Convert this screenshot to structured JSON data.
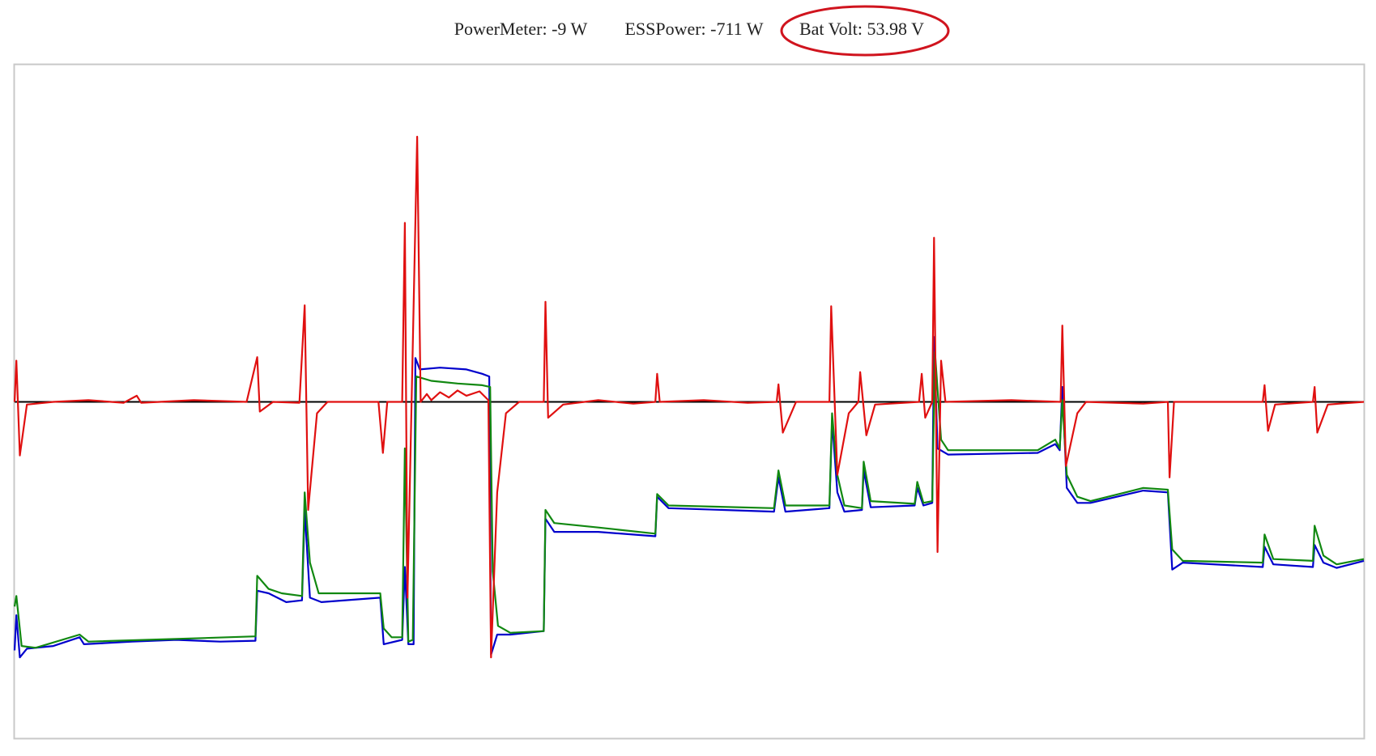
{
  "header": {
    "power_meter": "PowerMeter: -9 W",
    "ess_power": "ESSPower: -711 W",
    "bat_volt": "Bat Volt: 53.98 V"
  },
  "chart_data": {
    "type": "line",
    "xlim": [
      0,
      1535
    ],
    "ylim": [
      -383,
      384
    ],
    "series": [
      {
        "color": "#0000cc",
        "x": [
          0,
          2,
          6,
          14,
          44,
          74,
          79,
          134,
          184,
          234,
          274,
          276,
          289,
          309,
          327,
          330,
          336,
          349,
          416,
          420,
          441,
          444,
          448,
          454,
          456,
          461,
          484,
          514,
          532,
          540,
          542,
          549,
          564,
          602,
          604,
          614,
          664,
          729,
          731,
          744,
          864,
          869,
          877,
          927,
          930,
          936,
          944,
          964,
          966,
          974,
          1024,
          1027,
          1034,
          1044,
          1046,
          1050,
          1062,
          1164,
          1184,
          1189,
          1192,
          1197,
          1209,
          1224,
          1284,
          1312,
          1317,
          1329,
          1420,
          1422,
          1432,
          1477,
          1479,
          1489,
          1504,
          1535
        ],
        "values": [
          -283,
          -243,
          -291,
          -281,
          -278,
          -268,
          -276,
          -273,
          -271,
          -273,
          -272,
          -215,
          -218,
          -228,
          -226,
          -123,
          -223,
          -228,
          -223,
          -276,
          -271,
          -188,
          -276,
          -276,
          50,
          37,
          39,
          37,
          32,
          29,
          -288,
          -265,
          -265,
          -261,
          -133,
          -148,
          -148,
          -153,
          -108,
          -121,
          -125,
          -86,
          -125,
          -121,
          -21,
          -103,
          -125,
          -123,
          -78,
          -120,
          -118,
          -98,
          -118,
          -115,
          74,
          -53,
          -60,
          -58,
          -48,
          -55,
          17,
          -98,
          -115,
          -115,
          -101,
          -103,
          -191,
          -183,
          -188,
          -165,
          -185,
          -188,
          -163,
          -183,
          -189,
          -181
        ]
      },
      {
        "color": "#118811",
        "x": [
          0,
          2,
          8,
          24,
          74,
          84,
          184,
          274,
          276,
          289,
          304,
          327,
          330,
          336,
          346,
          416,
          420,
          429,
          441,
          444,
          448,
          453,
          457,
          474,
          504,
          532,
          541,
          544,
          550,
          564,
          602,
          604,
          614,
          664,
          729,
          731,
          744,
          864,
          869,
          877,
          927,
          930,
          936,
          944,
          964,
          966,
          974,
          1024,
          1027,
          1034,
          1044,
          1047,
          1054,
          1062,
          1164,
          1184,
          1189,
          1192,
          1197,
          1209,
          1224,
          1284,
          1312,
          1317,
          1329,
          1420,
          1422,
          1432,
          1477,
          1479,
          1489,
          1504,
          1535
        ],
        "values": [
          -233,
          -221,
          -278,
          -280,
          -265,
          -273,
          -270,
          -267,
          -198,
          -213,
          -218,
          -221,
          -103,
          -183,
          -218,
          -218,
          -258,
          -268,
          -268,
          -53,
          -273,
          -271,
          29,
          24,
          21,
          19,
          17,
          -193,
          -255,
          -263,
          -261,
          -123,
          -138,
          -143,
          -150,
          -105,
          -118,
          -121,
          -78,
          -118,
          -118,
          -13,
          -83,
          -118,
          -121,
          -68,
          -113,
          -116,
          -91,
          -115,
          -113,
          57,
          -43,
          -55,
          -55,
          -43,
          -53,
          2,
          -83,
          -108,
          -113,
          -98,
          -100,
          -168,
          -181,
          -183,
          -151,
          -179,
          -181,
          -141,
          -175,
          -185,
          -179
        ]
      },
      {
        "color": "#e01010",
        "x": [
          0,
          2,
          6,
          14,
          44,
          84,
          124,
          139,
          144,
          204,
          264,
          276,
          279,
          294,
          324,
          330,
          334,
          344,
          356,
          414,
          419,
          424,
          441,
          444,
          447,
          452,
          458,
          462,
          469,
          474,
          484,
          494,
          504,
          514,
          529,
          539,
          542,
          549,
          559,
          574,
          602,
          604,
          607,
          624,
          664,
          704,
          729,
          731,
          734,
          784,
          834,
          867,
          869,
          874,
          889,
          927,
          929,
          936,
          949,
          960,
          962,
          969,
          979,
          1029,
          1032,
          1036,
          1044,
          1046,
          1050,
          1054,
          1059,
          1134,
          1190,
          1192,
          1196,
          1209,
          1219,
          1284,
          1312,
          1314,
          1319,
          1420,
          1422,
          1426,
          1434,
          1477,
          1479,
          1482,
          1494,
          1535
        ],
        "values": [
          0,
          47,
          -61,
          -3,
          0,
          2,
          -1,
          7,
          -1,
          2,
          0,
          51,
          -11,
          0,
          -1,
          110,
          -123,
          -13,
          0,
          0,
          -58,
          0,
          0,
          204,
          -223,
          17,
          302,
          0,
          9,
          2,
          11,
          5,
          13,
          7,
          12,
          2,
          -291,
          -103,
          -13,
          0,
          0,
          114,
          -18,
          -3,
          2,
          -2,
          0,
          32,
          0,
          2,
          -1,
          0,
          20,
          -35,
          0,
          0,
          109,
          -83,
          -13,
          0,
          34,
          -38,
          -3,
          0,
          32,
          -18,
          0,
          187,
          -171,
          47,
          0,
          2,
          0,
          87,
          -73,
          -13,
          0,
          -2,
          0,
          -86,
          0,
          0,
          19,
          -33,
          -3,
          0,
          17,
          -35,
          -3,
          0
        ]
      }
    ]
  }
}
